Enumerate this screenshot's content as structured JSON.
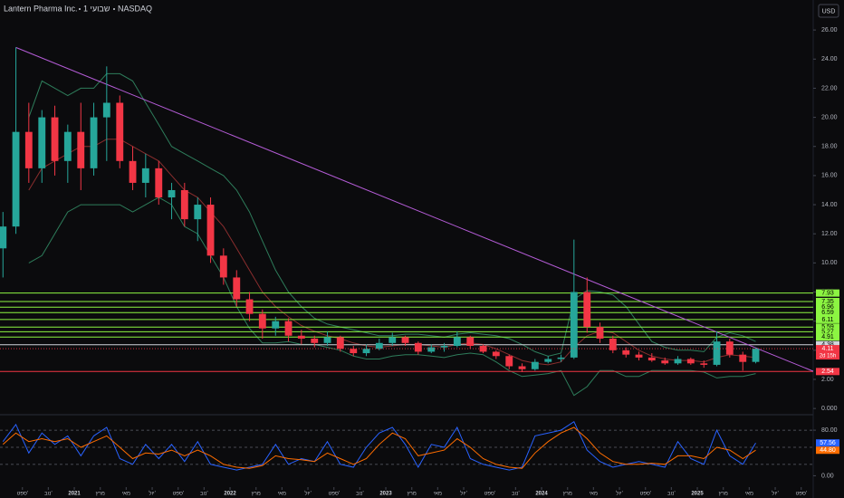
{
  "chart_data": {
    "type": "candlestick",
    "title": "Lantern Pharma Inc.",
    "interval": "1 שבועי",
    "exchange": "NASDAQ",
    "currency": "USD",
    "countdown": "2d 15h",
    "up_color": "#26a69a",
    "down_color": "#f23645",
    "x": [
      2020.542,
      2020.625,
      2020.708,
      2020.792,
      2020.875,
      2020.958,
      2021.042,
      2021.125,
      2021.208,
      2021.292,
      2021.375,
      2021.458,
      2021.542,
      2021.625,
      2021.708,
      2021.792,
      2021.875,
      2021.958,
      2022.042,
      2022.125,
      2022.208,
      2022.292,
      2022.375,
      2022.458,
      2022.542,
      2022.625,
      2022.708,
      2022.792,
      2022.875,
      2022.958,
      2023.042,
      2023.125,
      2023.208,
      2023.292,
      2023.375,
      2023.458,
      2023.542,
      2023.625,
      2023.708,
      2023.792,
      2023.875,
      2023.958,
      2024.042,
      2024.125,
      2024.208,
      2024.292,
      2024.375,
      2024.458,
      2024.542,
      2024.625,
      2024.708,
      2024.792,
      2024.875,
      2024.958,
      2025.042,
      2025.125,
      2025.208,
      2025.292,
      2025.375
    ],
    "candles": {
      "open": [
        11,
        12.5,
        19,
        16.5,
        20,
        17,
        19,
        16.5,
        20,
        21,
        17,
        15.5,
        16.5,
        14.5,
        15,
        13,
        14,
        10.5,
        9,
        7.5,
        6.5,
        5.5,
        6,
        5,
        4.8,
        4.5,
        4.9,
        4.1,
        3.8,
        4.1,
        4.5,
        4.9,
        4.5,
        3.9,
        4.2,
        4.3,
        4.9,
        4.3,
        3.9,
        3.6,
        2.9,
        2.7,
        3.2,
        3.4,
        3.5,
        8.0,
        5.6,
        4.8,
        4.0,
        3.7,
        3.5,
        3.3,
        3.1,
        3.4,
        3.1,
        3.0,
        4.6,
        3.7,
        3.2
      ],
      "high": [
        13.5,
        24.8,
        21,
        20.5,
        20.8,
        19.5,
        21,
        21,
        23.5,
        21.5,
        18,
        17.5,
        17,
        15.5,
        15.5,
        14.5,
        14.5,
        11,
        9.5,
        8,
        6.8,
        6.3,
        6.2,
        5.4,
        5,
        5.3,
        5,
        4.3,
        4.4,
        4.8,
        5.2,
        5.0,
        4.6,
        4.4,
        4.5,
        5.3,
        5.0,
        4.4,
        4.0,
        3.7,
        3.1,
        3.4,
        3.6,
        3.7,
        11.6,
        9.0,
        5.9,
        5.0,
        4.2,
        3.9,
        3.8,
        3.5,
        3.6,
        3.5,
        3.3,
        5.3,
        4.8,
        3.9,
        4.2
      ],
      "low": [
        9,
        12,
        15.5,
        15.5,
        16,
        15.5,
        15,
        16,
        17,
        16.5,
        15,
        14.5,
        14,
        13,
        12.5,
        11.5,
        10,
        8.5,
        7,
        6,
        4.8,
        5,
        4.6,
        4.4,
        4.2,
        4.3,
        3.9,
        3.6,
        3.6,
        4.0,
        4.3,
        4.3,
        3.7,
        3.8,
        3.9,
        4.2,
        4.1,
        3.8,
        3.4,
        2.7,
        2.5,
        2.6,
        3.1,
        3.2,
        3.4,
        5.2,
        4.5,
        3.8,
        3.5,
        3.3,
        3.2,
        3.0,
        3.0,
        3.0,
        2.8,
        2.9,
        3.5,
        2.6,
        3.1
      ],
      "close": [
        12.5,
        19,
        16.5,
        20,
        17,
        19,
        16.5,
        20,
        21,
        17,
        15.5,
        16.5,
        14.5,
        15,
        13,
        14,
        10.5,
        9,
        7.5,
        6.5,
        5.5,
        6,
        5,
        4.8,
        4.5,
        4.9,
        4.1,
        3.8,
        4.1,
        4.5,
        4.9,
        4.5,
        3.9,
        4.2,
        4.3,
        4.9,
        4.3,
        3.9,
        3.6,
        2.9,
        2.7,
        3.2,
        3.4,
        3.5,
        8.0,
        5.6,
        4.8,
        4.0,
        3.7,
        3.5,
        3.3,
        3.1,
        3.4,
        3.1,
        3.0,
        4.6,
        3.7,
        3.2,
        4.11
      ]
    },
    "bands": {
      "basis_color": "#8b2e2e",
      "band_color": "#2e7d5b",
      "basis": [
        null,
        null,
        15,
        16.5,
        17,
        17.5,
        18,
        18,
        18.5,
        18.5,
        18,
        17.5,
        17,
        16,
        15,
        14.5,
        13.5,
        12.5,
        11,
        9.5,
        8,
        7,
        6.3,
        5.7,
        5.3,
        5,
        4.8,
        4.5,
        4.3,
        4.2,
        4.3,
        4.4,
        4.4,
        4.3,
        4.2,
        4.4,
        4.5,
        4.4,
        4.1,
        3.7,
        3.3,
        3.1,
        3.0,
        3.2,
        4.2,
        5.0,
        5.3,
        5.2,
        4.6,
        4.0,
        3.6,
        3.4,
        3.3,
        3.3,
        3.2,
        3.5,
        3.7,
        3.6,
        3.5
      ],
      "upper": [
        null,
        null,
        20,
        22.5,
        22,
        21.5,
        22,
        22,
        23,
        23,
        22.5,
        21,
        19.5,
        18,
        17.5,
        17,
        16.5,
        16,
        15,
        13.5,
        11.5,
        9.5,
        8,
        7,
        6.2,
        5.8,
        5.6,
        5.4,
        5.2,
        5.0,
        5.0,
        5.1,
        5.1,
        5.0,
        4.9,
        5.1,
        5.2,
        5.1,
        5.0,
        4.8,
        4.4,
        3.9,
        3.6,
        3.8,
        7.5,
        8.1,
        8.0,
        7.8,
        7.0,
        5.8,
        4.6,
        4.2,
        4.0,
        4.0,
        3.9,
        4.9,
        5.2,
        5.0,
        4.6
      ],
      "lower": [
        null,
        null,
        10,
        10.5,
        12,
        13.5,
        14,
        14,
        14,
        14,
        13.5,
        14,
        14.5,
        14,
        12.5,
        12,
        10.5,
        9,
        7,
        5.5,
        4.5,
        4.5,
        4.6,
        4.4,
        4.4,
        4.2,
        4.0,
        3.6,
        3.4,
        3.4,
        3.6,
        3.7,
        3.7,
        3.6,
        3.5,
        3.7,
        3.8,
        3.7,
        3.2,
        2.6,
        2.2,
        2.3,
        2.4,
        2.6,
        0.9,
        1.5,
        2.6,
        2.6,
        2.2,
        2.2,
        2.6,
        2.6,
        2.6,
        2.6,
        2.5,
        2.1,
        2.2,
        2.2,
        2.4
      ]
    },
    "levels": {
      "color": "#8cf542",
      "values": [
        7.93,
        7.35,
        6.96,
        6.59,
        6.11,
        5.59,
        5.27,
        4.91
      ]
    },
    "pivot": {
      "value": 4.38,
      "color": "#d1d4dc"
    },
    "support": {
      "value": 2.54,
      "color": "#f23645"
    },
    "trendline": {
      "color": "#b45cd6",
      "x": [
        2020.625,
        2025.744
      ],
      "y": [
        24.8,
        2.56
      ]
    },
    "xlim": [
      2020.523,
      2025.744
    ],
    "xticks": [
      {
        "value": 2020.667,
        "label": "ספט'"
      },
      {
        "value": 2020.833,
        "label": "נוב'"
      },
      2021,
      {
        "value": 2021.167,
        "label": "מרץ"
      },
      {
        "value": 2021.333,
        "label": "מאי"
      },
      {
        "value": 2021.5,
        "label": "יול'"
      },
      {
        "value": 2021.667,
        "label": "ספט'"
      },
      {
        "value": 2021.833,
        "label": "נוב'"
      },
      2022,
      {
        "value": 2022.167,
        "label": "מרץ"
      },
      {
        "value": 2022.333,
        "label": "מאי"
      },
      {
        "value": 2022.5,
        "label": "יול'"
      },
      {
        "value": 2022.667,
        "label": "ספט'"
      },
      {
        "value": 2022.833,
        "label": "נוב'"
      },
      2023,
      {
        "value": 2023.167,
        "label": "מרץ"
      },
      {
        "value": 2023.333,
        "label": "מאי"
      },
      {
        "value": 2023.5,
        "label": "יול'"
      },
      {
        "value": 2023.667,
        "label": "ספט'"
      },
      {
        "value": 2023.833,
        "label": "נוב'"
      },
      2024,
      {
        "value": 2024.167,
        "label": "מרץ"
      },
      {
        "value": 2024.333,
        "label": "מאי"
      },
      {
        "value": 2024.5,
        "label": "יול'"
      },
      {
        "value": 2024.667,
        "label": "ספט'"
      },
      {
        "value": 2024.833,
        "label": "נוב'"
      },
      2025,
      {
        "value": 2025.167,
        "label": "מרץ"
      },
      {
        "value": 2025.333,
        "label": "מאי"
      },
      {
        "value": 2025.5,
        "label": "יול'"
      },
      {
        "value": 2025.667,
        "label": "ספט'"
      }
    ],
    "ylim": [
      -0.24,
      28.06
    ],
    "yticks": [
      {
        "value": 0,
        "label": "0.000"
      },
      {
        "value": 2,
        "label": "2.00"
      },
      {
        "value": 4,
        "label": "4.00"
      },
      {
        "value": 6,
        "label": "6.00"
      },
      {
        "value": 8,
        "label": "8.00"
      },
      {
        "value": 10,
        "label": "10.00"
      },
      {
        "value": 12,
        "label": "12.00"
      },
      {
        "value": 14,
        "label": "14.00"
      },
      {
        "value": 16,
        "label": "16.00"
      },
      {
        "value": 18,
        "label": "18.00"
      },
      {
        "value": 20,
        "label": "20.00"
      },
      {
        "value": 22,
        "label": "22.00"
      },
      {
        "value": 24,
        "label": "24.00"
      },
      {
        "value": 26,
        "label": "26.00"
      }
    ],
    "oscillator": {
      "ylim": [
        -20,
        104
      ],
      "yticks": [
        {
          "value": 0,
          "label": "0.00"
        },
        {
          "value": 80,
          "label": "80.00"
        }
      ],
      "guides": [
        20,
        50,
        80
      ],
      "series": [
        {
          "color": "#2962ff",
          "values": [
            60,
            90,
            40,
            75,
            55,
            70,
            35,
            70,
            85,
            30,
            20,
            55,
            30,
            55,
            25,
            60,
            20,
            15,
            10,
            15,
            20,
            55,
            20,
            30,
            25,
            60,
            20,
            15,
            50,
            75,
            85,
            55,
            15,
            55,
            50,
            85,
            30,
            20,
            15,
            10,
            15,
            70,
            75,
            80,
            95,
            45,
            25,
            15,
            20,
            25,
            20,
            15,
            60,
            30,
            20,
            80,
            35,
            20,
            57.56
          ]
        },
        {
          "color": "#ff6d00",
          "values": [
            55,
            75,
            60,
            65,
            60,
            65,
            50,
            60,
            70,
            50,
            30,
            40,
            38,
            45,
            35,
            45,
            35,
            20,
            15,
            13,
            18,
            35,
            30,
            28,
            25,
            40,
            30,
            20,
            30,
            55,
            75,
            65,
            35,
            40,
            45,
            65,
            50,
            30,
            20,
            15,
            13,
            40,
            60,
            75,
            85,
            65,
            40,
            25,
            20,
            20,
            22,
            20,
            35,
            35,
            30,
            50,
            45,
            30,
            44.8
          ],
          "value_labels": [
            null,
            null,
            null,
            null,
            null,
            null,
            null,
            null,
            null,
            null,
            null,
            null,
            null,
            null,
            null,
            null,
            null,
            null,
            null,
            null,
            null,
            null,
            null,
            null,
            null,
            null,
            null,
            null,
            null,
            null,
            null,
            null,
            null,
            null,
            null,
            null,
            null,
            null,
            null,
            null,
            null,
            null,
            null,
            null,
            null,
            null,
            null,
            null,
            null,
            null,
            null,
            null,
            null,
            null,
            null,
            null,
            null,
            null,
            "44.80"
          ]
        }
      ]
    }
  }
}
